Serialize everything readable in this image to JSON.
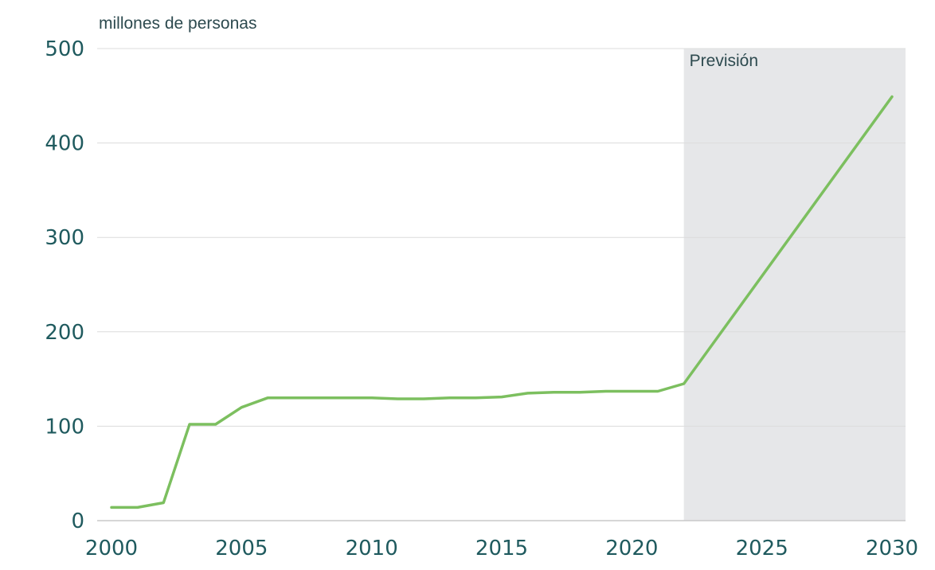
{
  "chart_data": {
    "type": "line",
    "ylabel": "millones de personas",
    "xlim": [
      2000,
      2030
    ],
    "ylim": [
      0,
      500
    ],
    "grid": true,
    "x_ticks": [
      2000,
      2005,
      2010,
      2015,
      2020,
      2025,
      2030
    ],
    "y_ticks": [
      0,
      100,
      200,
      300,
      400,
      500
    ],
    "forecast": {
      "label": "Previsión",
      "start": 2022,
      "end": 2030
    },
    "series": [
      {
        "color": "#7cbf5f",
        "x": [
          2000,
          2001,
          2002,
          2003,
          2004,
          2005,
          2006,
          2007,
          2008,
          2009,
          2010,
          2011,
          2012,
          2013,
          2014,
          2015,
          2016,
          2017,
          2018,
          2019,
          2020,
          2021,
          2022,
          2030
        ],
        "y": [
          14,
          14,
          19,
          102,
          102,
          120,
          130,
          130,
          130,
          130,
          130,
          129,
          129,
          130,
          130,
          131,
          135,
          136,
          136,
          137,
          137,
          137,
          145,
          449
        ]
      }
    ]
  }
}
